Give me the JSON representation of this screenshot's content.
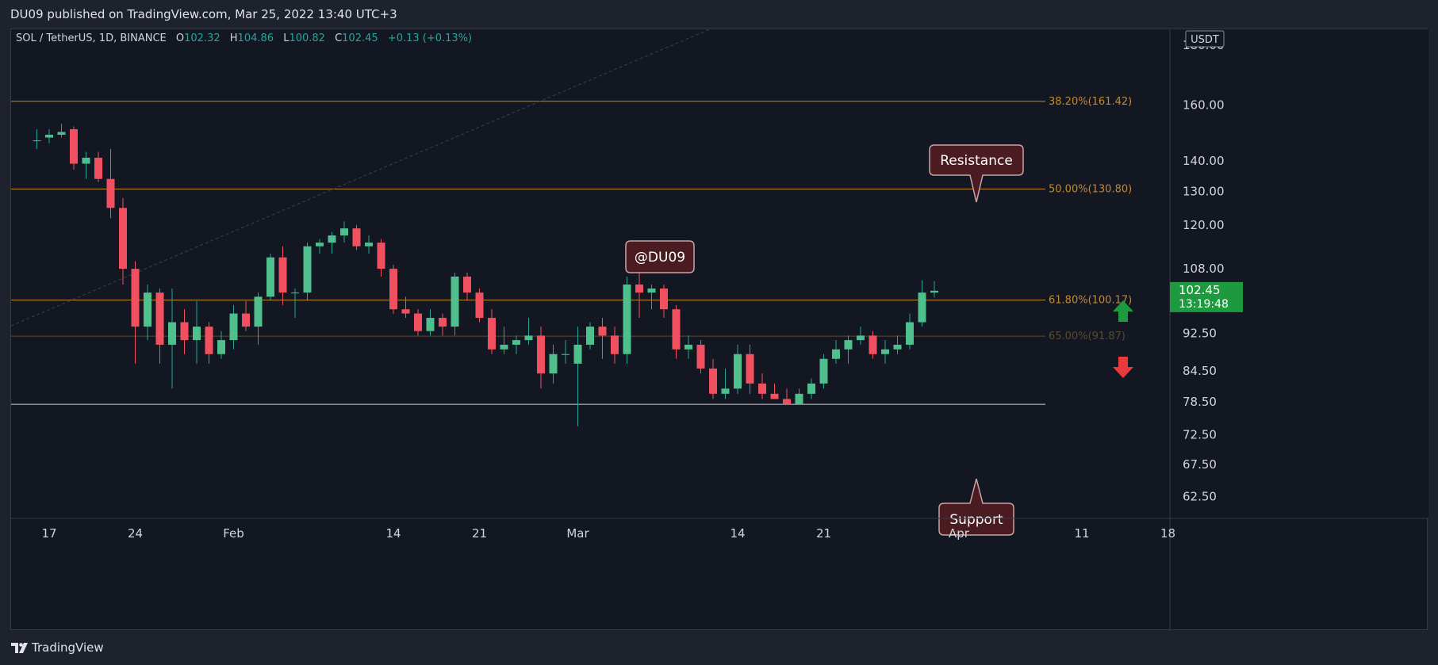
{
  "header": {
    "published_text": "DU09 published on TradingView.com, Mar 25, 2022 13:40 UTC+3"
  },
  "footer": {
    "brand": "TradingView"
  },
  "legend": {
    "symbol": "SOL / TetherUS, 1D, BINANCE",
    "o_label": "O",
    "o": "102.32",
    "h_label": "H",
    "h": "104.86",
    "l_label": "L",
    "l": "100.82",
    "c_label": "C",
    "c": "102.45",
    "change": "+0.13 (+0.13%)"
  },
  "price_axis": {
    "currency": "USDT",
    "ticks": [
      {
        "value": 160,
        "label": "160.00"
      },
      {
        "value": 140,
        "label": "140.00"
      },
      {
        "value": 130,
        "label": "130.00"
      },
      {
        "value": 120,
        "label": "120.00"
      },
      {
        "value": 108,
        "label": "108.00"
      },
      {
        "value": 92.5,
        "label": "92.50"
      },
      {
        "value": 84.5,
        "label": "84.50"
      },
      {
        "value": 78.5,
        "label": "78.50"
      },
      {
        "value": 72.5,
        "label": "72.50"
      },
      {
        "value": 67.5,
        "label": "67.50"
      },
      {
        "value": 62.5,
        "label": "62.50"
      }
    ],
    "partial_top_label": "180.00",
    "current_price": "102.45",
    "countdown": "13:19:48"
  },
  "time_axis": {
    "ticks": [
      {
        "day": 0,
        "label": "17"
      },
      {
        "day": 7,
        "label": "24"
      },
      {
        "day": 15,
        "label": "Feb"
      },
      {
        "day": 28,
        "label": "14"
      },
      {
        "day": 35,
        "label": "21"
      },
      {
        "day": 43,
        "label": "Mar"
      },
      {
        "day": 56,
        "label": "14"
      },
      {
        "day": 63,
        "label": "21"
      },
      {
        "day": 74,
        "label": "Apr"
      },
      {
        "day": 84,
        "label": "11"
      },
      {
        "day": 91,
        "label": "18"
      }
    ]
  },
  "annotations": {
    "resistance": "Resistance",
    "support": "Support",
    "watermark": "@DU09",
    "support_price": "78.00"
  },
  "colors": {
    "up": "#26a69a",
    "up_body": "#4fc08d",
    "down": "#f0505f",
    "fib": "#c58a2a",
    "fib_faint": "#5a4a32",
    "support_line": "#d1d4dc",
    "callout_bg": "#4a1c22",
    "callout_border": "#c9a3a8",
    "current_bg": "#1e9a3e",
    "arrow_up": "#1e9a3e",
    "arrow_down": "#e8393c"
  },
  "chart_data": {
    "type": "candlestick",
    "title": "SOL / TetherUS, 1D, BINANCE",
    "xlabel": "",
    "ylabel": "",
    "y_scale": "log",
    "ylim": [
      60,
      183
    ],
    "x_start": "2022-01-16",
    "levels": [
      {
        "label": "38.20%(161.42)",
        "value": 161.42
      },
      {
        "label": "50.00%(130.80)",
        "value": 130.8
      },
      {
        "label": "61.80%(100.17)",
        "value": 100.17
      },
      {
        "label": "65.00%(91.87)",
        "value": 91.87,
        "faint": true
      },
      {
        "label": "",
        "value": 78.0,
        "kind": "support"
      }
    ],
    "candles": [
      [
        -1,
        147,
        151,
        144,
        147
      ],
      [
        0,
        148,
        151,
        146,
        149
      ],
      [
        1,
        149,
        153,
        148,
        150
      ],
      [
        2,
        151,
        152,
        137,
        139
      ],
      [
        3,
        139,
        143,
        134,
        141
      ],
      [
        4,
        141,
        143,
        133,
        134
      ],
      [
        5,
        134,
        144,
        122,
        125
      ],
      [
        6,
        125,
        128,
        104,
        108
      ],
      [
        7,
        108,
        110,
        86,
        94
      ],
      [
        8,
        94,
        104,
        91,
        102
      ],
      [
        9,
        102,
        103,
        86,
        90
      ],
      [
        10,
        90,
        103,
        81,
        95
      ],
      [
        11,
        95,
        98,
        88,
        91
      ],
      [
        12,
        91,
        100,
        86,
        94
      ],
      [
        13,
        94,
        95,
        86,
        88
      ],
      [
        14,
        88,
        93,
        87,
        91
      ],
      [
        15,
        91,
        99,
        89,
        97
      ],
      [
        16,
        97,
        100,
        93,
        94
      ],
      [
        17,
        94,
        102,
        90,
        101
      ],
      [
        18,
        101,
        112,
        100,
        111
      ],
      [
        19,
        111,
        114,
        99,
        102
      ],
      [
        20,
        102,
        103,
        96,
        102
      ],
      [
        21,
        102,
        115,
        100,
        114
      ],
      [
        22,
        114,
        116,
        112,
        115
      ],
      [
        23,
        115,
        118,
        112,
        117
      ],
      [
        24,
        117,
        121,
        115,
        119
      ],
      [
        25,
        119,
        120,
        113,
        114
      ],
      [
        26,
        114,
        117,
        112,
        115
      ],
      [
        27,
        115,
        116,
        106,
        108
      ],
      [
        28,
        108,
        109,
        97,
        98
      ],
      [
        29,
        98,
        101,
        96,
        97
      ],
      [
        30,
        97,
        98,
        92,
        93
      ],
      [
        31,
        93,
        98,
        92,
        96
      ],
      [
        32,
        96,
        97,
        92,
        94
      ],
      [
        33,
        94,
        107,
        92,
        106
      ],
      [
        34,
        106,
        107,
        100,
        102
      ],
      [
        35,
        102,
        103,
        95,
        96
      ],
      [
        36,
        96,
        98,
        88,
        89
      ],
      [
        37,
        89,
        94,
        88,
        90
      ],
      [
        38,
        90,
        92,
        88,
        91
      ],
      [
        39,
        91,
        96,
        90,
        92
      ],
      [
        40,
        92,
        94,
        81,
        84
      ],
      [
        41,
        84,
        90,
        82,
        88
      ],
      [
        42,
        88,
        91,
        86,
        88
      ],
      [
        43,
        86,
        94,
        74,
        90
      ],
      [
        44,
        90,
        95,
        89,
        94
      ],
      [
        45,
        94,
        96,
        87,
        92
      ],
      [
        46,
        92,
        94,
        86,
        88
      ],
      [
        47,
        88,
        106,
        86,
        104
      ],
      [
        48,
        104,
        108,
        96,
        102
      ],
      [
        49,
        102,
        104,
        98,
        103
      ],
      [
        50,
        103,
        104,
        96,
        98
      ],
      [
        51,
        98,
        99,
        87,
        89
      ],
      [
        52,
        89,
        92,
        87,
        90
      ],
      [
        53,
        90,
        91,
        84,
        85
      ],
      [
        54,
        85,
        87,
        79,
        80
      ],
      [
        55,
        80,
        85,
        79,
        81
      ],
      [
        56,
        81,
        90,
        80,
        88
      ],
      [
        57,
        88,
        90,
        80,
        82
      ],
      [
        58,
        82,
        84,
        79,
        80
      ],
      [
        59,
        80,
        82,
        79,
        79
      ],
      [
        60,
        79,
        81,
        78,
        78
      ],
      [
        61,
        78,
        81,
        78,
        80
      ],
      [
        62,
        80,
        83,
        79,
        82
      ],
      [
        63,
        82,
        88,
        81,
        87
      ],
      [
        64,
        87,
        91,
        86,
        89
      ],
      [
        65,
        89,
        92,
        86,
        91
      ],
      [
        66,
        91,
        94,
        90,
        92
      ],
      [
        67,
        92,
        93,
        87,
        88
      ],
      [
        68,
        88,
        91,
        86,
        89
      ],
      [
        69,
        89,
        92,
        88,
        90
      ],
      [
        70,
        90,
        97,
        89,
        95
      ],
      [
        71,
        95,
        105,
        94,
        102
      ],
      [
        72,
        102,
        104.86,
        100.82,
        102.45
      ]
    ]
  }
}
